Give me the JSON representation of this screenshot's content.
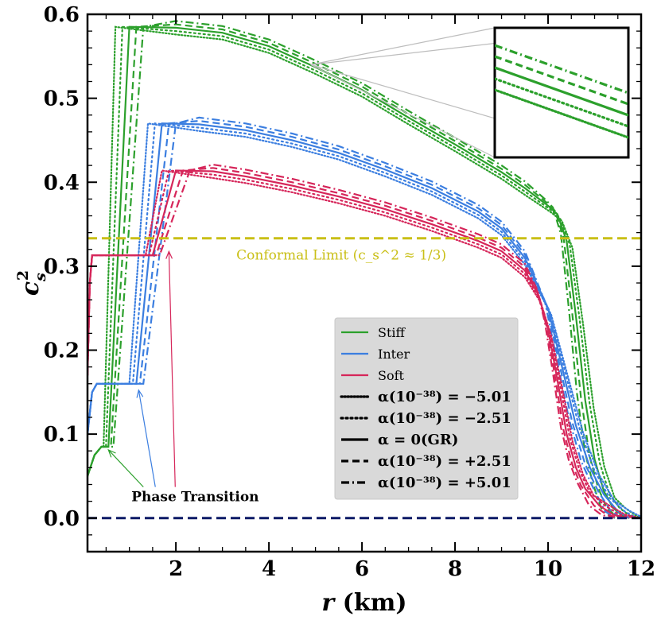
{
  "chart_data": {
    "type": "line",
    "xlabel": "r (km)",
    "ylabel": "c_s^2",
    "xlim": [
      0.1,
      12
    ],
    "ylim": [
      -0.04,
      0.6
    ],
    "xticks": [
      2,
      4,
      6,
      8,
      10,
      12
    ],
    "yticks": [
      0.0,
      0.1,
      0.2,
      0.3,
      0.4,
      0.5,
      0.6
    ],
    "xtick_labels": [
      "2",
      "4",
      "6",
      "8",
      "10",
      "12"
    ],
    "ytick_labels": [
      "0.0",
      "0.1",
      "0.2",
      "0.3",
      "0.4",
      "0.5",
      "0.6"
    ],
    "grid": false,
    "legend_position": "lower-right",
    "colors": {
      "stiff": "#2ca02c",
      "inter": "#3b7ee0",
      "soft": "#d6265a",
      "conformal": "#c9bf16",
      "zero": "#0b1a66",
      "inset_lines": "#bdbdbd",
      "legend_bg": "#d9d9d9"
    },
    "eos": [
      {
        "name": "Stiff",
        "color": "#2ca02c",
        "r_hadronic": [
          0.1,
          0.25,
          0.4
        ],
        "cs2_hadronic": [
          0.05,
          0.075,
          0.085
        ],
        "cs2_jump": 0.585,
        "profile": [
          [
            1.0,
            0.585
          ],
          [
            2.0,
            0.584
          ],
          [
            3.0,
            0.578
          ],
          [
            4.0,
            0.562
          ],
          [
            5.0,
            0.537
          ],
          [
            6.0,
            0.51
          ],
          [
            7.0,
            0.477
          ],
          [
            8.0,
            0.445
          ],
          [
            9.0,
            0.412
          ],
          [
            9.5,
            0.393
          ],
          [
            10.0,
            0.372
          ],
          [
            10.2,
            0.362
          ],
          [
            10.4,
            0.33
          ],
          [
            10.6,
            0.24
          ],
          [
            10.8,
            0.14
          ],
          [
            11.0,
            0.07
          ],
          [
            11.2,
            0.032
          ],
          [
            11.4,
            0.012
          ],
          [
            11.6,
            0.003
          ],
          [
            11.75,
            0.0
          ]
        ]
      },
      {
        "name": "Inter",
        "color": "#3b7ee0",
        "r_hadronic": [
          0.1,
          0.2,
          0.3
        ],
        "cs2_hadronic": [
          0.1,
          0.15,
          0.16
        ],
        "cs2_jump": 0.47,
        "profile": [
          [
            1.7,
            0.47
          ],
          [
            2.5,
            0.469
          ],
          [
            3.5,
            0.462
          ],
          [
            4.5,
            0.45
          ],
          [
            5.5,
            0.435
          ],
          [
            6.5,
            0.415
          ],
          [
            7.5,
            0.393
          ],
          [
            8.5,
            0.365
          ],
          [
            9.0,
            0.345
          ],
          [
            9.5,
            0.31
          ],
          [
            10.0,
            0.25
          ],
          [
            10.3,
            0.18
          ],
          [
            10.6,
            0.11
          ],
          [
            10.9,
            0.06
          ],
          [
            11.2,
            0.028
          ],
          [
            11.5,
            0.008
          ],
          [
            11.75,
            0.0
          ]
        ]
      },
      {
        "name": "Soft",
        "color": "#d6265a",
        "r_hadronic": [
          0.1,
          0.15,
          0.2
        ],
        "cs2_hadronic": [
          0.17,
          0.28,
          0.313
        ],
        "cs2_jump": 0.414,
        "profile": [
          [
            2.0,
            0.414
          ],
          [
            2.8,
            0.413
          ],
          [
            3.5,
            0.407
          ],
          [
            4.5,
            0.396
          ],
          [
            5.5,
            0.383
          ],
          [
            6.5,
            0.368
          ],
          [
            7.5,
            0.35
          ],
          [
            8.5,
            0.33
          ],
          [
            9.0,
            0.318
          ],
          [
            9.5,
            0.295
          ],
          [
            9.8,
            0.265
          ],
          [
            10.0,
            0.225
          ],
          [
            10.2,
            0.165
          ],
          [
            10.4,
            0.1
          ],
          [
            10.6,
            0.06
          ],
          [
            10.8,
            0.035
          ],
          [
            11.1,
            0.015
          ],
          [
            11.4,
            0.004
          ],
          [
            11.7,
            0.0
          ]
        ]
      }
    ],
    "alpha_variants": [
      {
        "label": "α(10⁻³⁸) = −5.01",
        "dash": "dotted-dense",
        "shift_km": -0.3,
        "tail_shift_km": 0.15
      },
      {
        "label": "α(10⁻³⁸) = −2.51",
        "dash": "dotted",
        "shift_km": -0.15,
        "tail_shift_km": 0.08
      },
      {
        "label": "α = 0(GR)",
        "dash": "solid",
        "shift_km": 0.0,
        "tail_shift_km": 0.0
      },
      {
        "label": "α(10⁻³⁸) = +2.51",
        "dash": "dashed",
        "shift_km": 0.15,
        "tail_shift_km": -0.08
      },
      {
        "label": "α(10⁻³⁸) = +5.01",
        "dash": "dashdot",
        "shift_km": 0.3,
        "tail_shift_km": -0.15
      }
    ],
    "horizontal_lines": [
      {
        "y": 0.3333,
        "color": "#c9bf16",
        "style": "dashed",
        "label": "Conformal Limit (c_s^2 ≈ 1/3)"
      },
      {
        "y": 0.0,
        "color": "#0b1a66",
        "style": "dashed"
      }
    ],
    "annotations": {
      "phase_transition": "Phase Transition",
      "conformal_limit": "Conformal Limit (c_s^2 ≈ 1/3)"
    },
    "legend": [
      "Stiff",
      "Inter",
      "Soft",
      "α(10⁻³⁸) = −5.01",
      "α(10⁻³⁸) = −2.51",
      "α = 0(GR)",
      "α(10⁻³⁸) = +2.51",
      "α(10⁻³⁸) = +5.01"
    ],
    "inset": {
      "zoom_center_km": 4.9,
      "zoom_center_cs2": 0.54
    }
  }
}
